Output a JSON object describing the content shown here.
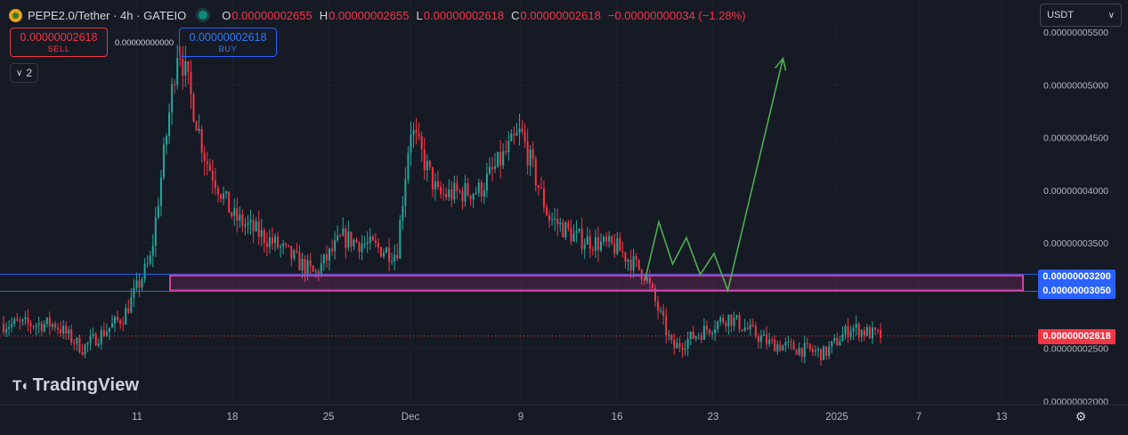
{
  "header": {
    "symbol": "PEPE2.0/Tether · 4h · GATEIO",
    "open_label": "O",
    "open": "0.00000002655",
    "high_label": "H",
    "high": "0.00000002655",
    "low_label": "L",
    "low": "0.00000002618",
    "close_label": "C",
    "close": "0.00000002618",
    "change": "−0.00000000034 (−1.28%)"
  },
  "trade": {
    "sell_price": "0.00000002618",
    "sell_label": "SELL",
    "spread": "0.00000000000",
    "buy_price": "0.00000002618",
    "buy_label": "BUY"
  },
  "indicators_toggle": {
    "icon": "chevron-down-icon",
    "count": "2"
  },
  "currency_select": {
    "value": "USDT"
  },
  "watermark": "TradingView",
  "axis": {
    "price_ticks": [
      "0.00000005500",
      "0.00000005000",
      "0.00000004500",
      "0.00000004000",
      "0.00000003500",
      "0.00000002500",
      "0.00000002000"
    ],
    "time_ticks": [
      "11",
      "18",
      "25",
      "Dec",
      "9",
      "16",
      "23",
      "2025",
      "7",
      "13"
    ]
  },
  "price_labels": {
    "zone_top": "0.00000003200",
    "zone_bottom": "0.00000003050",
    "last_price": "0.00000002618"
  },
  "colors": {
    "up": "#26a69a",
    "down": "#f23645",
    "zone": "#d53fa0",
    "line": "#2962ff",
    "projection": "#4caf50",
    "background": "#161a25"
  },
  "chart_data": {
    "type": "candlestick",
    "symbol": "PEPE2.0/Tether",
    "interval": "4h",
    "exchange": "GATEIO",
    "ylim": [
      2e-08,
      5.5e-08
    ],
    "support_zone": [
      3.05e-08,
      3.2e-08
    ],
    "last_price": 2.618e-08,
    "key_points": [
      {
        "x": "Nov 5",
        "y": 2.73e-08
      },
      {
        "x": "Nov 7",
        "y": 2.5e-08
      },
      {
        "x": "Nov 10",
        "y": 2.8e-08
      },
      {
        "x": "Nov 12",
        "y": 3.35e-08
      },
      {
        "x": "Nov 14",
        "y": 5.4e-08
      },
      {
        "x": "Nov 16",
        "y": 4.3e-08
      },
      {
        "x": "Nov 18",
        "y": 3.75e-08
      },
      {
        "x": "Nov 21",
        "y": 3.5e-08
      },
      {
        "x": "Nov 24",
        "y": 3.2e-08
      },
      {
        "x": "Nov 26",
        "y": 3.55e-08
      },
      {
        "x": "Nov 30",
        "y": 3.4e-08
      },
      {
        "x": "Dec 1",
        "y": 4.6e-08
      },
      {
        "x": "Dec 3",
        "y": 3.95e-08
      },
      {
        "x": "Dec 6",
        "y": 4e-08
      },
      {
        "x": "Dec 9",
        "y": 4.55e-08
      },
      {
        "x": "Dec 11",
        "y": 3.75e-08
      },
      {
        "x": "Dec 13",
        "y": 3.55e-08
      },
      {
        "x": "Dec 16",
        "y": 3.45e-08
      },
      {
        "x": "Dec 18",
        "y": 3.2e-08
      },
      {
        "x": "Dec 20",
        "y": 2.5e-08
      },
      {
        "x": "Dec 22",
        "y": 2.65e-08
      },
      {
        "x": "Dec 24",
        "y": 2.8e-08
      },
      {
        "x": "Dec 27",
        "y": 2.55e-08
      },
      {
        "x": "Dec 31",
        "y": 2.45e-08
      },
      {
        "x": "Jan 2",
        "y": 2.7e-08
      },
      {
        "x": "Jan 4",
        "y": 2.62e-08
      }
    ],
    "projection_path": [
      {
        "x": "Dec 18",
        "y": 3.15e-08
      },
      {
        "x": "Dec 19",
        "y": 3.7e-08
      },
      {
        "x": "Dec 20",
        "y": 3.3e-08
      },
      {
        "x": "Dec 21",
        "y": 3.55e-08
      },
      {
        "x": "Dec 22",
        "y": 3.2e-08
      },
      {
        "x": "Dec 23",
        "y": 3.4e-08
      },
      {
        "x": "Dec 24",
        "y": 3.05e-08
      },
      {
        "x": "Dec 28",
        "y": 5.25e-08
      }
    ]
  }
}
